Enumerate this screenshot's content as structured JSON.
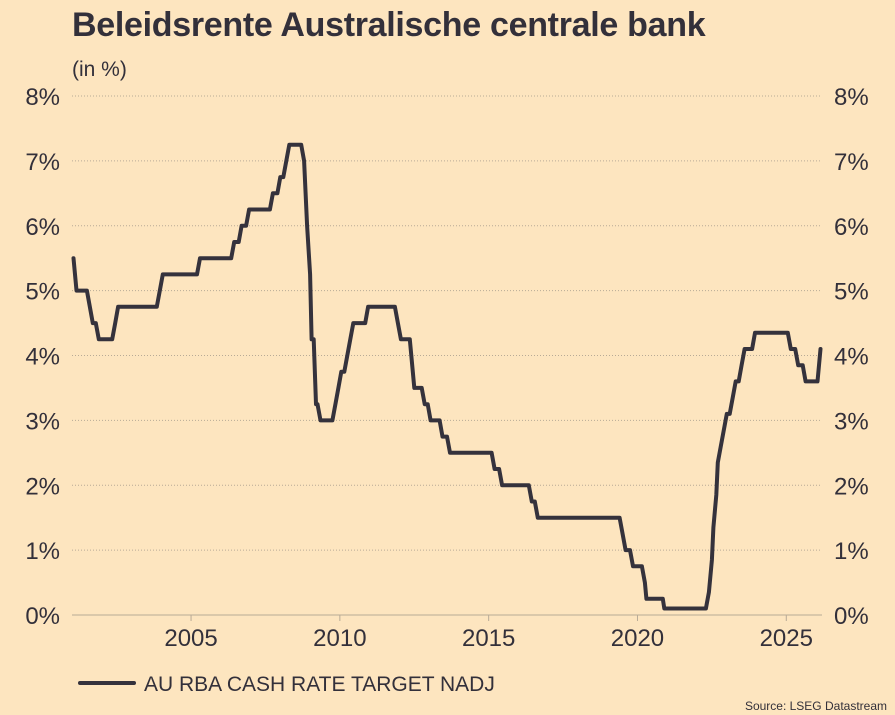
{
  "title": "Beleidsrente Australische centrale bank",
  "subtitle": "(in %)",
  "source": "Source: LSEG Datastream",
  "colors": {
    "background": "#fde5bf",
    "line": "#35323c",
    "grid": "#b8aa96",
    "text": "#33303a"
  },
  "chart_data": {
    "type": "line",
    "title": "Beleidsrente Australische centrale bank",
    "subtitle": "(in %)",
    "xlabel": "",
    "ylabel": "",
    "xlim": [
      2001.0,
      2026.2
    ],
    "ylim": [
      0,
      8
    ],
    "x_ticks": [
      2005,
      2010,
      2015,
      2020,
      2025
    ],
    "x_tick_labels": [
      "2005",
      "2010",
      "2015",
      "2020",
      "2025"
    ],
    "y_ticks": [
      0,
      1,
      2,
      3,
      4,
      5,
      6,
      7,
      8
    ],
    "y_tick_labels": [
      "0%",
      "1%",
      "2%",
      "3%",
      "4%",
      "5%",
      "6%",
      "7%",
      "8%"
    ],
    "y_axis_both_sides": true,
    "grid": "horizontal dotted",
    "legend_position": "bottom-left",
    "step": true,
    "series": [
      {
        "name": "AU RBA CASH RATE TARGET NADJ",
        "points": [
          [
            2001.05,
            5.5
          ],
          [
            2001.15,
            5.0
          ],
          [
            2001.5,
            5.0
          ],
          [
            2001.7,
            4.5
          ],
          [
            2001.8,
            4.5
          ],
          [
            2001.9,
            4.25
          ],
          [
            2002.35,
            4.25
          ],
          [
            2002.45,
            4.5
          ],
          [
            2002.55,
            4.75
          ],
          [
            2003.85,
            4.75
          ],
          [
            2003.95,
            5.0
          ],
          [
            2004.05,
            5.25
          ],
          [
            2005.2,
            5.25
          ],
          [
            2005.3,
            5.5
          ],
          [
            2006.35,
            5.5
          ],
          [
            2006.45,
            5.75
          ],
          [
            2006.6,
            5.75
          ],
          [
            2006.7,
            6.0
          ],
          [
            2006.85,
            6.0
          ],
          [
            2006.95,
            6.25
          ],
          [
            2007.65,
            6.25
          ],
          [
            2007.75,
            6.5
          ],
          [
            2007.9,
            6.5
          ],
          [
            2008.0,
            6.75
          ],
          [
            2008.1,
            6.75
          ],
          [
            2008.2,
            7.0
          ],
          [
            2008.3,
            7.25
          ],
          [
            2008.7,
            7.25
          ],
          [
            2008.8,
            7.0
          ],
          [
            2008.9,
            6.0
          ],
          [
            2009.0,
            5.25
          ],
          [
            2009.05,
            4.25
          ],
          [
            2009.12,
            4.25
          ],
          [
            2009.2,
            3.25
          ],
          [
            2009.25,
            3.25
          ],
          [
            2009.35,
            3.0
          ],
          [
            2009.75,
            3.0
          ],
          [
            2009.85,
            3.25
          ],
          [
            2009.95,
            3.5
          ],
          [
            2010.05,
            3.75
          ],
          [
            2010.15,
            3.75
          ],
          [
            2010.25,
            4.0
          ],
          [
            2010.35,
            4.25
          ],
          [
            2010.45,
            4.5
          ],
          [
            2010.85,
            4.5
          ],
          [
            2010.95,
            4.75
          ],
          [
            2011.85,
            4.75
          ],
          [
            2011.95,
            4.5
          ],
          [
            2012.05,
            4.25
          ],
          [
            2012.35,
            4.25
          ],
          [
            2012.45,
            3.75
          ],
          [
            2012.5,
            3.5
          ],
          [
            2012.75,
            3.5
          ],
          [
            2012.85,
            3.25
          ],
          [
            2012.95,
            3.25
          ],
          [
            2013.05,
            3.0
          ],
          [
            2013.35,
            3.0
          ],
          [
            2013.45,
            2.75
          ],
          [
            2013.6,
            2.75
          ],
          [
            2013.7,
            2.5
          ],
          [
            2015.1,
            2.5
          ],
          [
            2015.2,
            2.25
          ],
          [
            2015.35,
            2.25
          ],
          [
            2015.45,
            2.0
          ],
          [
            2016.35,
            2.0
          ],
          [
            2016.45,
            1.75
          ],
          [
            2016.55,
            1.75
          ],
          [
            2016.65,
            1.5
          ],
          [
            2019.4,
            1.5
          ],
          [
            2019.5,
            1.25
          ],
          [
            2019.6,
            1.0
          ],
          [
            2019.75,
            1.0
          ],
          [
            2019.85,
            0.75
          ],
          [
            2020.15,
            0.75
          ],
          [
            2020.25,
            0.5
          ],
          [
            2020.3,
            0.25
          ],
          [
            2020.85,
            0.25
          ],
          [
            2020.9,
            0.1
          ],
          [
            2022.3,
            0.1
          ],
          [
            2022.4,
            0.35
          ],
          [
            2022.5,
            0.85
          ],
          [
            2022.55,
            1.35
          ],
          [
            2022.65,
            1.85
          ],
          [
            2022.7,
            2.35
          ],
          [
            2022.8,
            2.6
          ],
          [
            2022.9,
            2.85
          ],
          [
            2023.0,
            3.1
          ],
          [
            2023.1,
            3.1
          ],
          [
            2023.2,
            3.35
          ],
          [
            2023.3,
            3.6
          ],
          [
            2023.4,
            3.6
          ],
          [
            2023.5,
            3.85
          ],
          [
            2023.6,
            4.1
          ],
          [
            2023.85,
            4.1
          ],
          [
            2023.95,
            4.35
          ],
          [
            2025.05,
            4.35
          ],
          [
            2025.15,
            4.1
          ],
          [
            2025.3,
            4.1
          ],
          [
            2025.4,
            3.85
          ],
          [
            2025.55,
            3.85
          ],
          [
            2025.65,
            3.6
          ],
          [
            2026.05,
            3.6
          ],
          [
            2026.15,
            4.1
          ]
        ]
      }
    ]
  }
}
